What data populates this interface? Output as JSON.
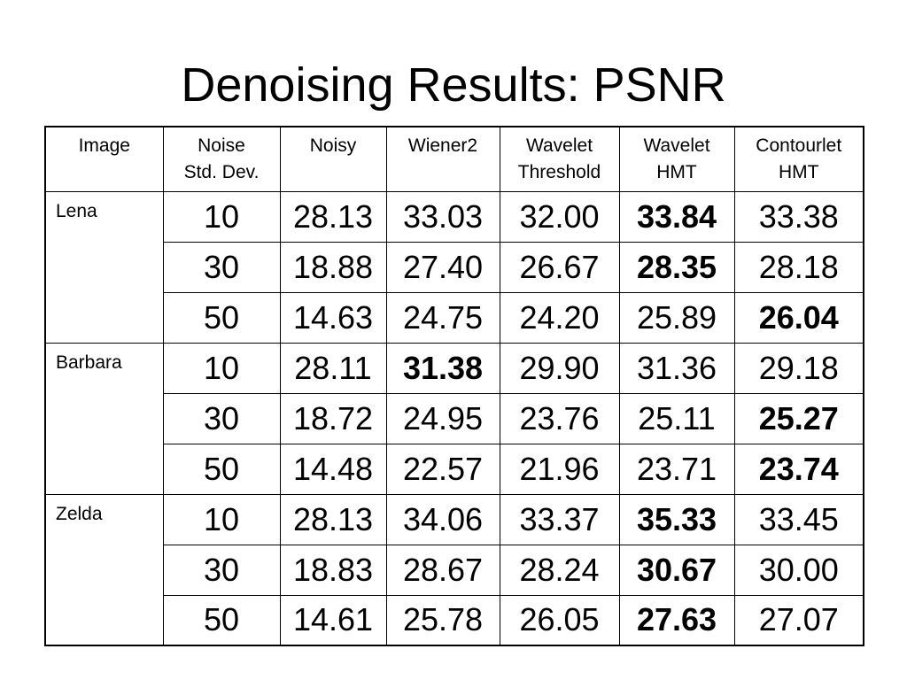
{
  "title": "Denoising Results: PSNR",
  "table": {
    "headers": [
      [
        "Image"
      ],
      [
        "Noise",
        "Std. Dev."
      ],
      [
        "Noisy"
      ],
      [
        "Wiener2"
      ],
      [
        "Wavelet",
        "Threshold"
      ],
      [
        "Wavelet",
        "HMT"
      ],
      [
        "Contourlet",
        "HMT"
      ]
    ],
    "groups": [
      {
        "image": "Lena",
        "rows": [
          {
            "cells": [
              "10",
              "28.13",
              "33.03",
              "32.00",
              "33.84",
              "33.38"
            ],
            "bold": [
              4
            ]
          },
          {
            "cells": [
              "30",
              "18.88",
              "27.40",
              "26.67",
              "28.35",
              "28.18"
            ],
            "bold": [
              4
            ]
          },
          {
            "cells": [
              "50",
              "14.63",
              "24.75",
              "24.20",
              "25.89",
              "26.04"
            ],
            "bold": [
              5
            ]
          }
        ]
      },
      {
        "image": "Barbara",
        "rows": [
          {
            "cells": [
              "10",
              "28.11",
              "31.38",
              "29.90",
              "31.36",
              "29.18"
            ],
            "bold": [
              2
            ]
          },
          {
            "cells": [
              "30",
              "18.72",
              "24.95",
              "23.76",
              "25.11",
              "25.27"
            ],
            "bold": [
              5
            ]
          },
          {
            "cells": [
              "50",
              "14.48",
              "22.57",
              "21.96",
              "23.71",
              "23.74"
            ],
            "bold": [
              5
            ]
          }
        ]
      },
      {
        "image": "Zelda",
        "rows": [
          {
            "cells": [
              "10",
              "28.13",
              "34.06",
              "33.37",
              "35.33",
              "33.45"
            ],
            "bold": [
              4
            ]
          },
          {
            "cells": [
              "30",
              "18.83",
              "28.67",
              "28.24",
              "30.67",
              "30.00"
            ],
            "bold": [
              4
            ]
          },
          {
            "cells": [
              "50",
              "14.61",
              "25.78",
              "26.05",
              "27.63",
              "27.07"
            ],
            "bold": [
              4
            ]
          }
        ]
      }
    ]
  }
}
